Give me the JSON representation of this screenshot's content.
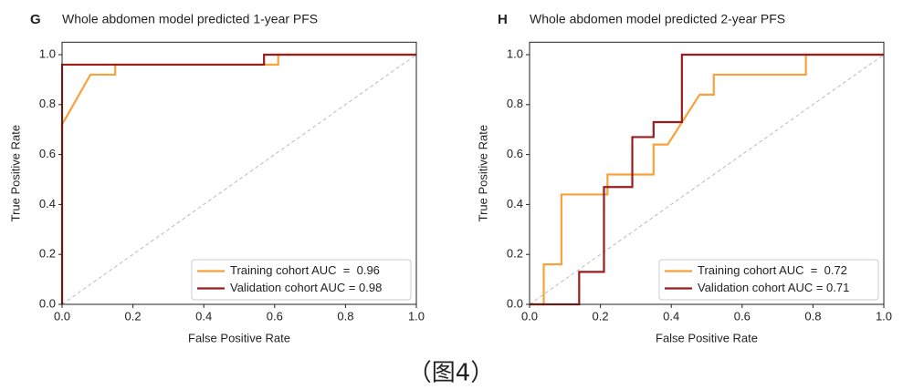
{
  "chart_data": [
    {
      "type": "line",
      "panel": "G",
      "title": "Whole abdomen model predicted 1-year PFS",
      "x_label": "False Positive Rate",
      "y_label": "True Positive Rate",
      "xlim": [
        0,
        1
      ],
      "ylim": [
        0,
        1.05
      ],
      "xticks": [
        {
          "value": 0,
          "label": "0.0"
        },
        0.2,
        0.4,
        0.6,
        0.8,
        {
          "value": 1,
          "label": "1.0"
        }
      ],
      "yticks": [
        {
          "value": 0,
          "label": "0.0"
        },
        0.2,
        0.4,
        0.6,
        0.8,
        {
          "value": 1,
          "label": "1.0"
        }
      ],
      "legend": "lower right",
      "series": [
        {
          "name": "Training cohort AUC  =  0.96",
          "color": "#f7a23b",
          "x": [
            0,
            0,
            0.08,
            0.15,
            0.15,
            0.61,
            0.61,
            1
          ],
          "values": [
            0,
            0.72,
            0.92,
            0.92,
            0.96,
            0.96,
            1,
            1
          ]
        },
        {
          "name": "Validation cohort AUC = 0.98",
          "color": "#9b1c1c",
          "x": [
            0,
            0,
            0.57,
            0.57,
            1
          ],
          "values": [
            0,
            0.96,
            0.96,
            1,
            1
          ]
        }
      ]
    },
    {
      "type": "line",
      "panel": "H",
      "title": "Whole abdomen model predicted 2-year PFS",
      "x_label": "False Positive Rate",
      "y_label": "True Positive Rate",
      "xlim": [
        0,
        1
      ],
      "ylim": [
        0,
        1.05
      ],
      "xticks": [
        {
          "value": 0,
          "label": "0.0"
        },
        0.2,
        0.4,
        0.6,
        0.8,
        {
          "value": 1,
          "label": "1.0"
        }
      ],
      "yticks": [
        {
          "value": 0,
          "label": "0.0"
        },
        0.2,
        0.4,
        0.6,
        0.8,
        {
          "value": 1,
          "label": "1.0"
        }
      ],
      "legend": "lower right",
      "series": [
        {
          "name": "Training cohort AUC  =  0.72",
          "color": "#f7a23b",
          "x": [
            0,
            0.04,
            0.04,
            0.09,
            0.09,
            0.22,
            0.22,
            0.35,
            0.35,
            0.39,
            0.48,
            0.52,
            0.52,
            0.78,
            0.78,
            1
          ],
          "values": [
            0,
            0,
            0.16,
            0.16,
            0.44,
            0.44,
            0.52,
            0.52,
            0.64,
            0.64,
            0.84,
            0.84,
            0.92,
            0.92,
            1,
            1
          ]
        },
        {
          "name": "Validation cohort AUC = 0.71",
          "color": "#9b1c1c",
          "x": [
            0,
            0.14,
            0.14,
            0.21,
            0.21,
            0.29,
            0.29,
            0.35,
            0.35,
            0.43,
            0.43,
            1
          ],
          "values": [
            0,
            0,
            0.13,
            0.13,
            0.47,
            0.47,
            0.67,
            0.67,
            0.73,
            0.73,
            1,
            1
          ]
        }
      ]
    }
  ],
  "caption": "（图4）"
}
